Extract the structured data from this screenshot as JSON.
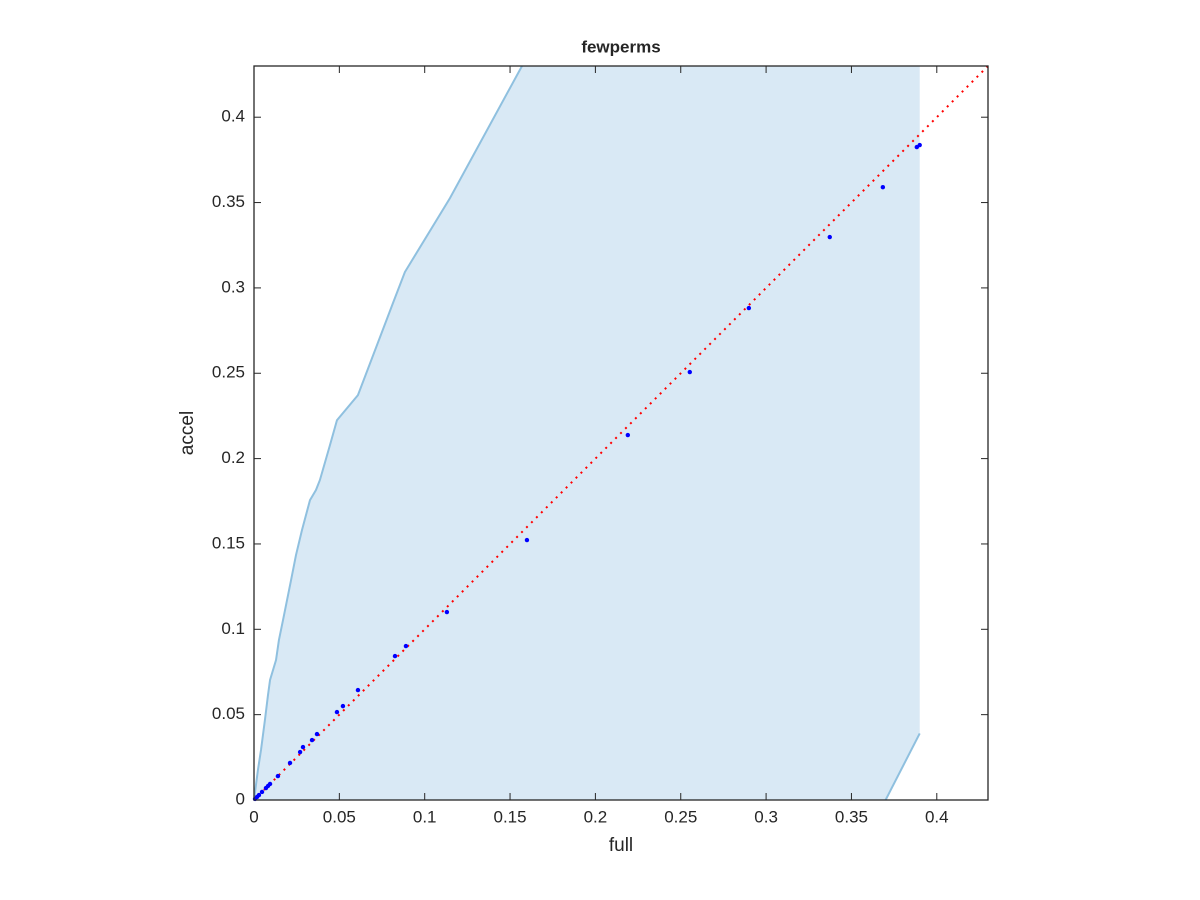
{
  "chart_data": {
    "type": "scatter",
    "title": "fewperms",
    "xlabel": "full",
    "ylabel": "accel",
    "xlim": [
      0,
      0.43
    ],
    "ylim": [
      0,
      0.43
    ],
    "xticks": [
      0,
      0.05,
      0.1,
      0.15,
      0.2,
      0.25,
      0.3,
      0.35,
      0.4
    ],
    "yticks": [
      0,
      0.05,
      0.1,
      0.15,
      0.2,
      0.25,
      0.3,
      0.35,
      0.4
    ],
    "band": {
      "color": "#d9e9f5",
      "edge_color": "#8fc0df",
      "upper_x": [
        0,
        0.0023,
        0.0041,
        0.0064,
        0.0082,
        0.0094,
        0.0129,
        0.0146,
        0.017,
        0.0217,
        0.0246,
        0.0281,
        0.0328,
        0.0363,
        0.0386,
        0.0445,
        0.0486,
        0.0609,
        0.0814,
        0.0884,
        0.1148,
        0.157
      ],
      "upper_y": [
        0,
        0.0176,
        0.0293,
        0.0469,
        0.0615,
        0.0703,
        0.082,
        0.0937,
        0.1054,
        0.1288,
        0.1435,
        0.1581,
        0.1757,
        0.1816,
        0.1874,
        0.2079,
        0.2225,
        0.2372,
        0.2911,
        0.3093,
        0.3526,
        0.43
      ],
      "lower_x": [
        0.37,
        0.39
      ],
      "lower_y": [
        0,
        0.039
      ]
    },
    "reference_line": {
      "x": [
        0,
        0.43
      ],
      "y": [
        0,
        0.43
      ],
      "color": "#ff0000"
    },
    "points": {
      "color": "#0000ff",
      "x": [
        0.0006,
        0.0018,
        0.0029,
        0.0047,
        0.007,
        0.0082,
        0.0094,
        0.014,
        0.0211,
        0.027,
        0.0287,
        0.034,
        0.0369,
        0.0486,
        0.0521,
        0.0609,
        0.0826,
        0.089,
        0.113,
        0.1599,
        0.219,
        0.2553,
        0.2899,
        0.3373,
        0.3684,
        0.3883,
        0.39
      ],
      "y": [
        0.0006,
        0.0018,
        0.0029,
        0.0047,
        0.007,
        0.0082,
        0.0094,
        0.014,
        0.0217,
        0.0281,
        0.031,
        0.0351,
        0.0386,
        0.0515,
        0.055,
        0.0644,
        0.0843,
        0.0902,
        0.1101,
        0.1523,
        0.2138,
        0.2507,
        0.2882,
        0.3298,
        0.359,
        0.3825,
        0.3837
      ]
    }
  }
}
